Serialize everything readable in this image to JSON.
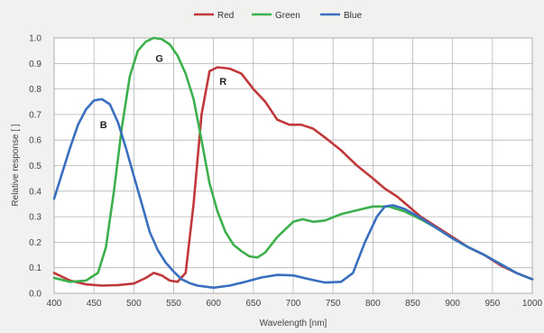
{
  "chart_data": {
    "type": "line",
    "xlabel": "Wavelength [nm]",
    "ylabel": "Relative response [ ]",
    "xlim": [
      400,
      1000
    ],
    "ylim": [
      0,
      1.0
    ],
    "x_ticks": [
      "400",
      "450",
      "500",
      "550",
      "600",
      "650",
      "700",
      "750",
      "800",
      "850",
      "900",
      "950",
      "1000"
    ],
    "y_ticks": [
      "0.0",
      "0.1",
      "0.2",
      "0.3",
      "0.4",
      "0.5",
      "0.6",
      "0.7",
      "0.8",
      "0.9",
      "1.0"
    ],
    "grid": true,
    "legend_position": "top-center",
    "series": [
      {
        "name": "Red",
        "label": "R",
        "label_at": [
          612,
          0.83
        ],
        "color": "#c0383a",
        "points": [
          [
            400,
            0.08
          ],
          [
            420,
            0.05
          ],
          [
            440,
            0.035
          ],
          [
            460,
            0.03
          ],
          [
            480,
            0.032
          ],
          [
            500,
            0.038
          ],
          [
            515,
            0.06
          ],
          [
            525,
            0.08
          ],
          [
            535,
            0.07
          ],
          [
            545,
            0.05
          ],
          [
            555,
            0.045
          ],
          [
            565,
            0.08
          ],
          [
            575,
            0.35
          ],
          [
            585,
            0.7
          ],
          [
            595,
            0.87
          ],
          [
            605,
            0.885
          ],
          [
            620,
            0.88
          ],
          [
            635,
            0.86
          ],
          [
            650,
            0.8
          ],
          [
            665,
            0.75
          ],
          [
            680,
            0.68
          ],
          [
            695,
            0.66
          ],
          [
            710,
            0.66
          ],
          [
            725,
            0.645
          ],
          [
            740,
            0.61
          ],
          [
            760,
            0.56
          ],
          [
            780,
            0.5
          ],
          [
            800,
            0.45
          ],
          [
            815,
            0.41
          ],
          [
            830,
            0.38
          ],
          [
            845,
            0.34
          ],
          [
            860,
            0.3
          ],
          [
            880,
            0.26
          ],
          [
            900,
            0.22
          ],
          [
            920,
            0.18
          ],
          [
            940,
            0.15
          ],
          [
            960,
            0.11
          ],
          [
            980,
            0.08
          ],
          [
            1000,
            0.055
          ]
        ]
      },
      {
        "name": "Green",
        "label": "G",
        "label_at": [
          532,
          0.92
        ],
        "color": "#3cb04c",
        "points": [
          [
            400,
            0.06
          ],
          [
            420,
            0.045
          ],
          [
            440,
            0.05
          ],
          [
            455,
            0.08
          ],
          [
            465,
            0.18
          ],
          [
            475,
            0.4
          ],
          [
            485,
            0.65
          ],
          [
            495,
            0.85
          ],
          [
            505,
            0.95
          ],
          [
            515,
            0.985
          ],
          [
            525,
            1.0
          ],
          [
            535,
            0.995
          ],
          [
            545,
            0.975
          ],
          [
            555,
            0.93
          ],
          [
            565,
            0.86
          ],
          [
            575,
            0.76
          ],
          [
            585,
            0.6
          ],
          [
            595,
            0.43
          ],
          [
            605,
            0.32
          ],
          [
            615,
            0.24
          ],
          [
            625,
            0.19
          ],
          [
            635,
            0.165
          ],
          [
            645,
            0.145
          ],
          [
            655,
            0.14
          ],
          [
            665,
            0.16
          ],
          [
            680,
            0.22
          ],
          [
            700,
            0.28
          ],
          [
            712,
            0.29
          ],
          [
            725,
            0.28
          ],
          [
            740,
            0.285
          ],
          [
            760,
            0.31
          ],
          [
            780,
            0.325
          ],
          [
            800,
            0.34
          ],
          [
            820,
            0.34
          ],
          [
            840,
            0.32
          ],
          [
            860,
            0.29
          ],
          [
            880,
            0.255
          ],
          [
            900,
            0.215
          ],
          [
            920,
            0.18
          ],
          [
            940,
            0.15
          ],
          [
            960,
            0.115
          ],
          [
            980,
            0.08
          ],
          [
            1000,
            0.055
          ]
        ]
      },
      {
        "name": "Blue",
        "label": "B",
        "label_at": [
          462,
          0.66
        ],
        "color": "#3a6fbf",
        "points": [
          [
            400,
            0.37
          ],
          [
            410,
            0.47
          ],
          [
            420,
            0.57
          ],
          [
            430,
            0.66
          ],
          [
            440,
            0.72
          ],
          [
            450,
            0.755
          ],
          [
            460,
            0.76
          ],
          [
            470,
            0.74
          ],
          [
            480,
            0.67
          ],
          [
            490,
            0.57
          ],
          [
            500,
            0.46
          ],
          [
            510,
            0.35
          ],
          [
            520,
            0.24
          ],
          [
            530,
            0.17
          ],
          [
            540,
            0.12
          ],
          [
            550,
            0.085
          ],
          [
            560,
            0.055
          ],
          [
            570,
            0.04
          ],
          [
            580,
            0.03
          ],
          [
            600,
            0.022
          ],
          [
            620,
            0.03
          ],
          [
            640,
            0.045
          ],
          [
            660,
            0.062
          ],
          [
            680,
            0.072
          ],
          [
            700,
            0.07
          ],
          [
            720,
            0.055
          ],
          [
            740,
            0.042
          ],
          [
            760,
            0.045
          ],
          [
            775,
            0.08
          ],
          [
            790,
            0.2
          ],
          [
            805,
            0.3
          ],
          [
            815,
            0.34
          ],
          [
            825,
            0.345
          ],
          [
            840,
            0.33
          ],
          [
            860,
            0.295
          ],
          [
            880,
            0.255
          ],
          [
            900,
            0.215
          ],
          [
            920,
            0.18
          ],
          [
            940,
            0.15
          ],
          [
            960,
            0.115
          ],
          [
            980,
            0.08
          ],
          [
            1000,
            0.055
          ]
        ]
      }
    ]
  }
}
